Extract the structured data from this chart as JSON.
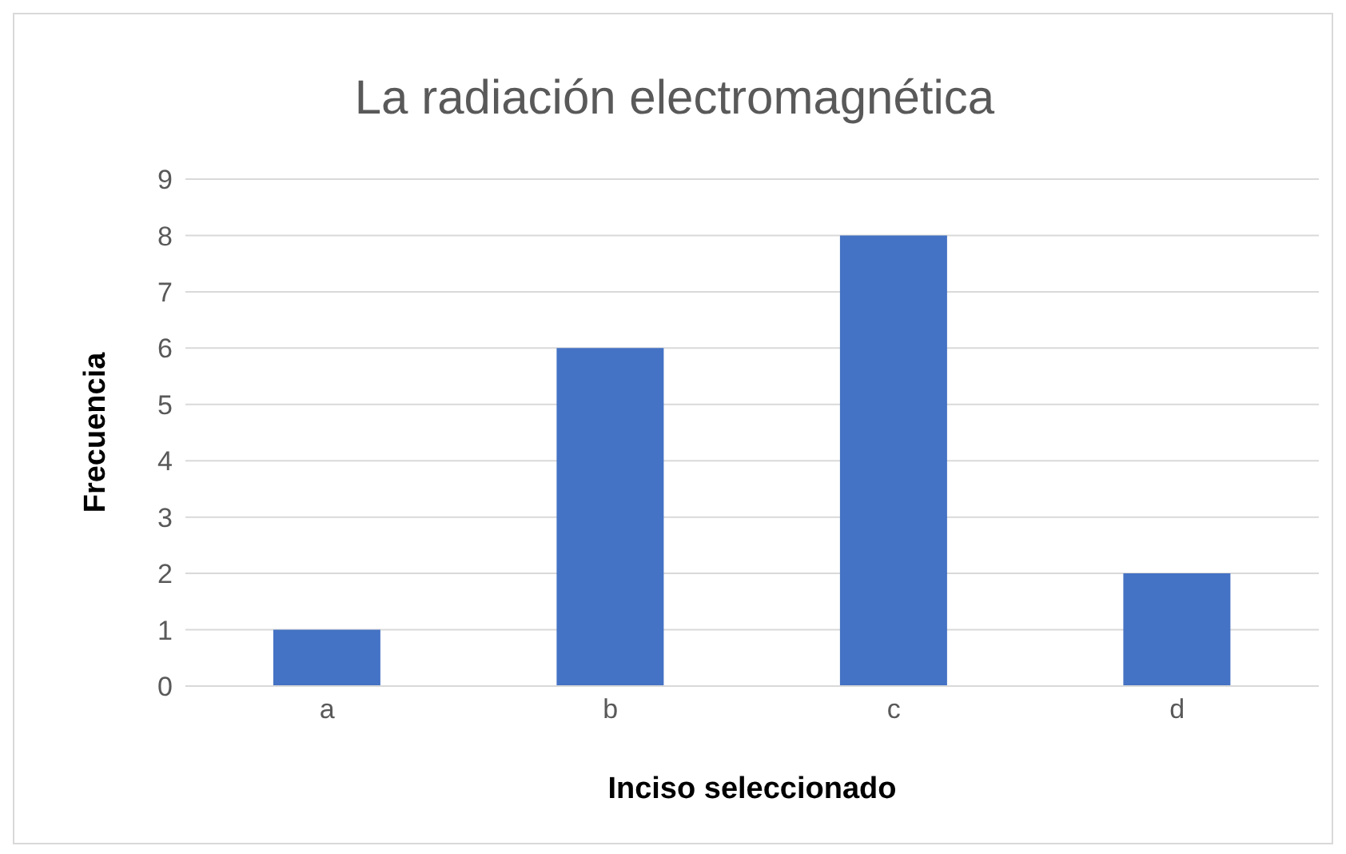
{
  "chart_data": {
    "type": "bar",
    "title": "La radiación electromagnética",
    "xlabel": "Inciso seleccionado",
    "ylabel": "Frecuencia",
    "categories": [
      "a",
      "b",
      "c",
      "d"
    ],
    "values": [
      1,
      6,
      8,
      2
    ],
    "color": "#4472c4",
    "ylim": [
      0,
      9
    ],
    "yticks": [
      0,
      1,
      2,
      3,
      4,
      5,
      6,
      7,
      8,
      9
    ],
    "grid": "y"
  }
}
